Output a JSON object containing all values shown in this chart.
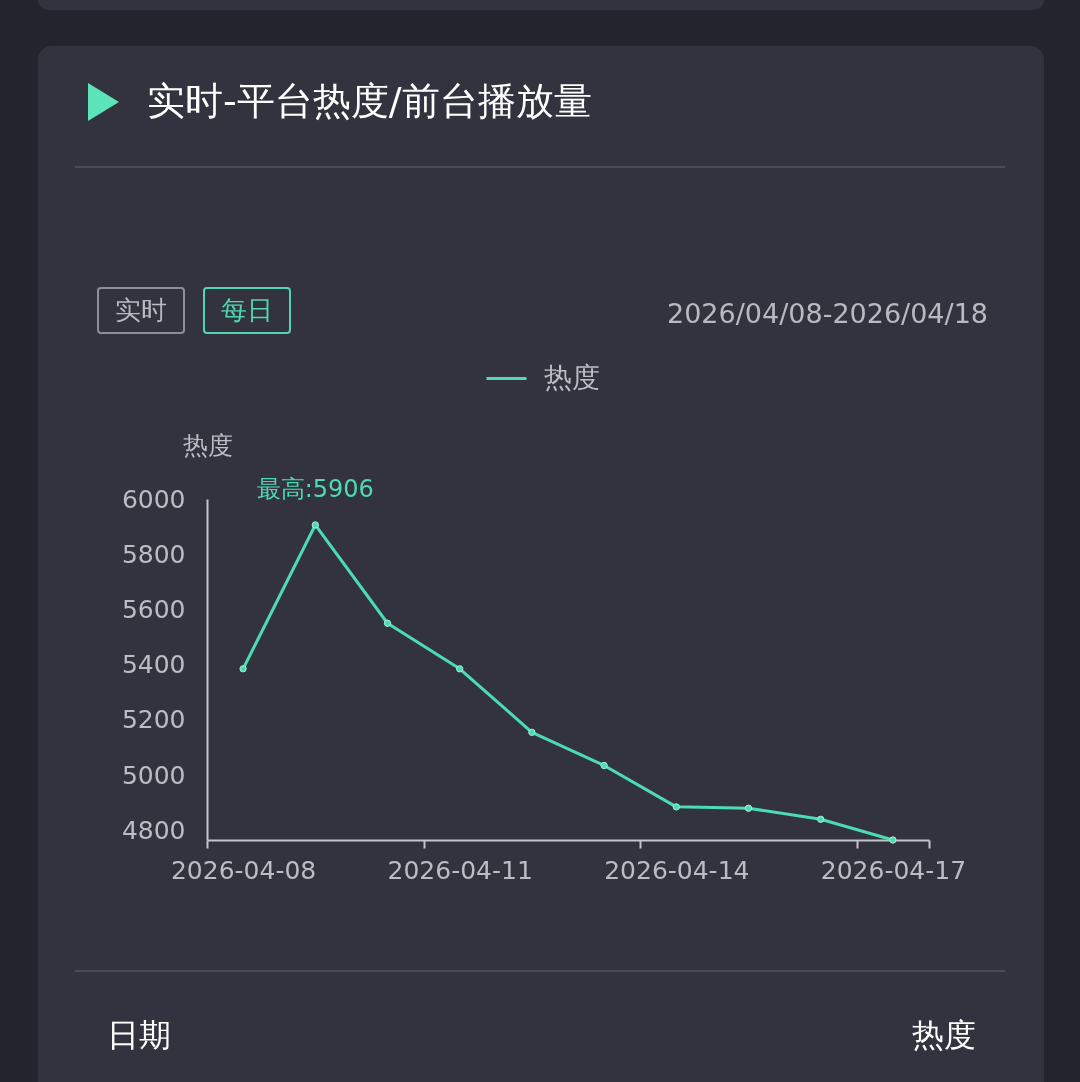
{
  "chart_data": {
    "type": "line",
    "title": "实时-平台热度/前台播放量",
    "ylabel": "热度",
    "categories": [
      "2026-04-08",
      null,
      null,
      "2026-04-11",
      null,
      null,
      "2026-04-14",
      null,
      null,
      "2026-04-17"
    ],
    "series": [
      {
        "name": "热度",
        "color": "#4ddbb4",
        "values": [
          5385,
          5906,
          5550,
          5385,
          5155,
          5035,
          4885,
          4880,
          4840,
          4765
        ]
      }
    ],
    "ylim": [
      4765,
      6000
    ],
    "yticks": [
      4800,
      5000,
      5200,
      5400,
      5600,
      5800,
      6000
    ],
    "legend": "top",
    "marker": "circle",
    "annotations": [
      "实时",
      "每日",
      "2026/04/08-2026/04/18",
      {
        "text": "最高:5906",
        "y": 5906
      },
      "日期",
      "热度"
    ]
  }
}
